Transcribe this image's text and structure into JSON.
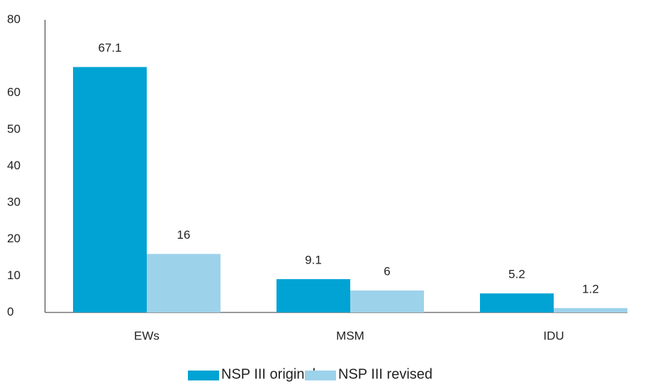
{
  "chart_data": {
    "type": "bar",
    "categories": [
      "EWs",
      "MSM",
      "IDU"
    ],
    "series": [
      {
        "name": "NSP III original",
        "color": "#00a3d3",
        "values": [
          67.1,
          9.1,
          5.2
        ]
      },
      {
        "name": "NSP III revised",
        "color": "#9dd2eb",
        "values": [
          16,
          6,
          1.2
        ]
      }
    ],
    "ylim": [
      0,
      80
    ],
    "yticks": [
      0,
      10,
      20,
      30,
      40,
      50,
      60,
      80
    ],
    "grid": false,
    "legend": "bottom"
  }
}
